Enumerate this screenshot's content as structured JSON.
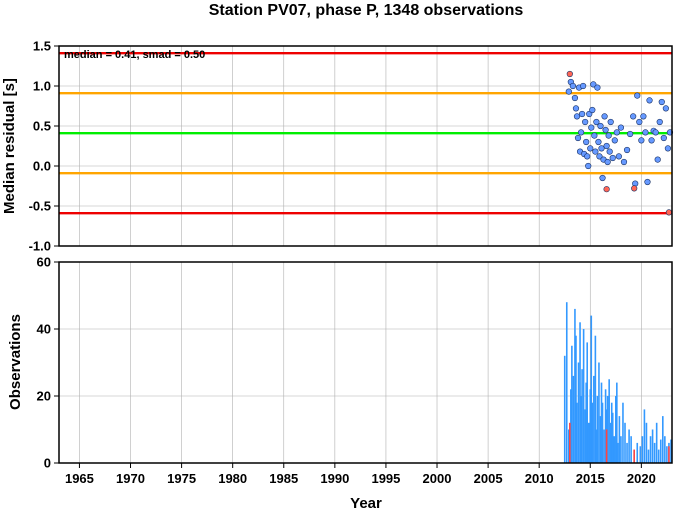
{
  "chart_data": [
    {
      "type": "scatter",
      "title": "Station PV07, phase P, 1348 observations",
      "xlabel": "",
      "ylabel": "Median residual [s]",
      "xlim": [
        1963,
        2023
      ],
      "ylim": [
        -1.0,
        1.5
      ],
      "y_ticks": [
        "1.5",
        "1.0",
        "0.5",
        "0.0",
        "-0.5",
        "-1.0"
      ],
      "grid": true,
      "annotation": "median = 0.41, smad = 0.50",
      "reference_lines": [
        {
          "name": "median",
          "y": 0.41,
          "color": "#00ee00"
        },
        {
          "name": "upper 1 smad",
          "y": 0.91,
          "color": "#ffa500"
        },
        {
          "name": "lower 1 smad",
          "y": -0.09,
          "color": "#ffa500"
        },
        {
          "name": "upper 2 smad",
          "y": 1.41,
          "color": "#ee0000"
        },
        {
          "name": "lower 2 smad",
          "y": -0.59,
          "color": "#ee0000"
        }
      ],
      "point_colors": {
        "normal": "#6699ff",
        "outlier": "#ff6655"
      },
      "series": [
        {
          "status": "normal",
          "x": [
            2012.9,
            2013.1,
            2013.3,
            2013.5,
            2013.6,
            2013.7,
            2013.8,
            2013.9,
            2014.0,
            2014.1,
            2014.2,
            2014.3,
            2014.4,
            2014.5,
            2014.6,
            2014.7,
            2014.8,
            2014.9,
            2015.0,
            2015.1,
            2015.2,
            2015.3,
            2015.4,
            2015.5,
            2015.6,
            2015.7,
            2015.8,
            2015.9,
            2016.0,
            2016.1,
            2016.2,
            2016.3,
            2016.4,
            2016.5,
            2016.6,
            2016.7,
            2016.8,
            2016.9,
            2017.0,
            2017.2,
            2017.4,
            2017.6,
            2017.8,
            2018.0,
            2018.3,
            2018.6,
            2018.9,
            2019.2,
            2019.4,
            2019.6,
            2019.8,
            2020.0,
            2020.2,
            2020.4,
            2020.6,
            2020.8,
            2021.0,
            2021.2,
            2021.4,
            2021.6,
            2021.8,
            2022.0,
            2022.2,
            2022.4,
            2022.6,
            2022.8
          ],
          "y": [
            0.93,
            1.05,
            1.0,
            0.85,
            0.72,
            0.62,
            0.35,
            0.98,
            0.18,
            0.42,
            0.65,
            1.0,
            0.15,
            0.55,
            0.3,
            0.12,
            0.0,
            0.65,
            0.22,
            0.48,
            0.7,
            1.02,
            0.38,
            0.18,
            0.55,
            0.98,
            0.3,
            0.12,
            0.5,
            0.22,
            -0.15,
            0.08,
            0.62,
            0.45,
            0.25,
            0.05,
            0.38,
            0.18,
            0.55,
            0.1,
            0.32,
            0.42,
            0.12,
            0.48,
            0.05,
            0.2,
            0.4,
            0.62,
            -0.22,
            0.88,
            0.55,
            0.32,
            0.62,
            0.42,
            -0.2,
            0.82,
            0.32,
            0.44,
            0.42,
            0.08,
            0.55,
            0.8,
            0.35,
            0.72,
            0.22,
            0.42
          ]
        },
        {
          "status": "outlier",
          "x": [
            2013.0,
            2016.6,
            2019.3,
            2022.7
          ],
          "y": [
            1.15,
            -0.29,
            -0.28,
            -0.58
          ]
        }
      ]
    },
    {
      "type": "bar",
      "title": "",
      "xlabel": "Year",
      "ylabel": "Observations",
      "xlim": [
        1963,
        2023
      ],
      "ylim": [
        0,
        60
      ],
      "y_ticks": [
        "60",
        "40",
        "20",
        "0"
      ],
      "x_ticks": [
        "1965",
        "1970",
        "1975",
        "1980",
        "1985",
        "1990",
        "1995",
        "2000",
        "2005",
        "2010",
        "2015",
        "2020"
      ],
      "grid": true,
      "bar_colors": {
        "normal": "#3399ff",
        "outlier": "#ff4444"
      },
      "x": [
        2012.5,
        2012.7,
        2012.9,
        2013.1,
        2013.2,
        2013.35,
        2013.5,
        2013.6,
        2013.7,
        2013.85,
        2014.0,
        2014.1,
        2014.2,
        2014.35,
        2014.5,
        2014.6,
        2014.7,
        2014.85,
        2015.0,
        2015.1,
        2015.2,
        2015.35,
        2015.5,
        2015.6,
        2015.7,
        2015.85,
        2016.0,
        2016.1,
        2016.2,
        2016.35,
        2016.5,
        2016.6,
        2016.7,
        2016.85,
        2017.0,
        2017.1,
        2017.2,
        2017.35,
        2017.5,
        2017.6,
        2017.7,
        2017.85,
        2018.0,
        2018.2,
        2018.4,
        2018.6,
        2018.8,
        2019.0,
        2019.3,
        2019.6,
        2019.9,
        2020.1,
        2020.3,
        2020.5,
        2020.7,
        2020.9,
        2021.1,
        2021.3,
        2021.5,
        2021.7,
        2021.9,
        2022.1,
        2022.3,
        2022.5,
        2022.7,
        2022.9
      ],
      "values": [
        32,
        48,
        10,
        22,
        35,
        26,
        46,
        38,
        18,
        30,
        42,
        20,
        28,
        40,
        16,
        24,
        36,
        12,
        22,
        44,
        18,
        26,
        38,
        10,
        20,
        30,
        14,
        24,
        18,
        10,
        22,
        16,
        20,
        25,
        12,
        18,
        15,
        8,
        20,
        24,
        6,
        14,
        8,
        18,
        12,
        6,
        10,
        8,
        4,
        6,
        5,
        8,
        16,
        12,
        4,
        8,
        10,
        6,
        12,
        4,
        7,
        14,
        8,
        5,
        6,
        7
      ],
      "outlier_x": [
        2013.0,
        2016.6,
        2019.3,
        2022.7
      ],
      "outlier_values": [
        12,
        10,
        4,
        5
      ]
    }
  ]
}
